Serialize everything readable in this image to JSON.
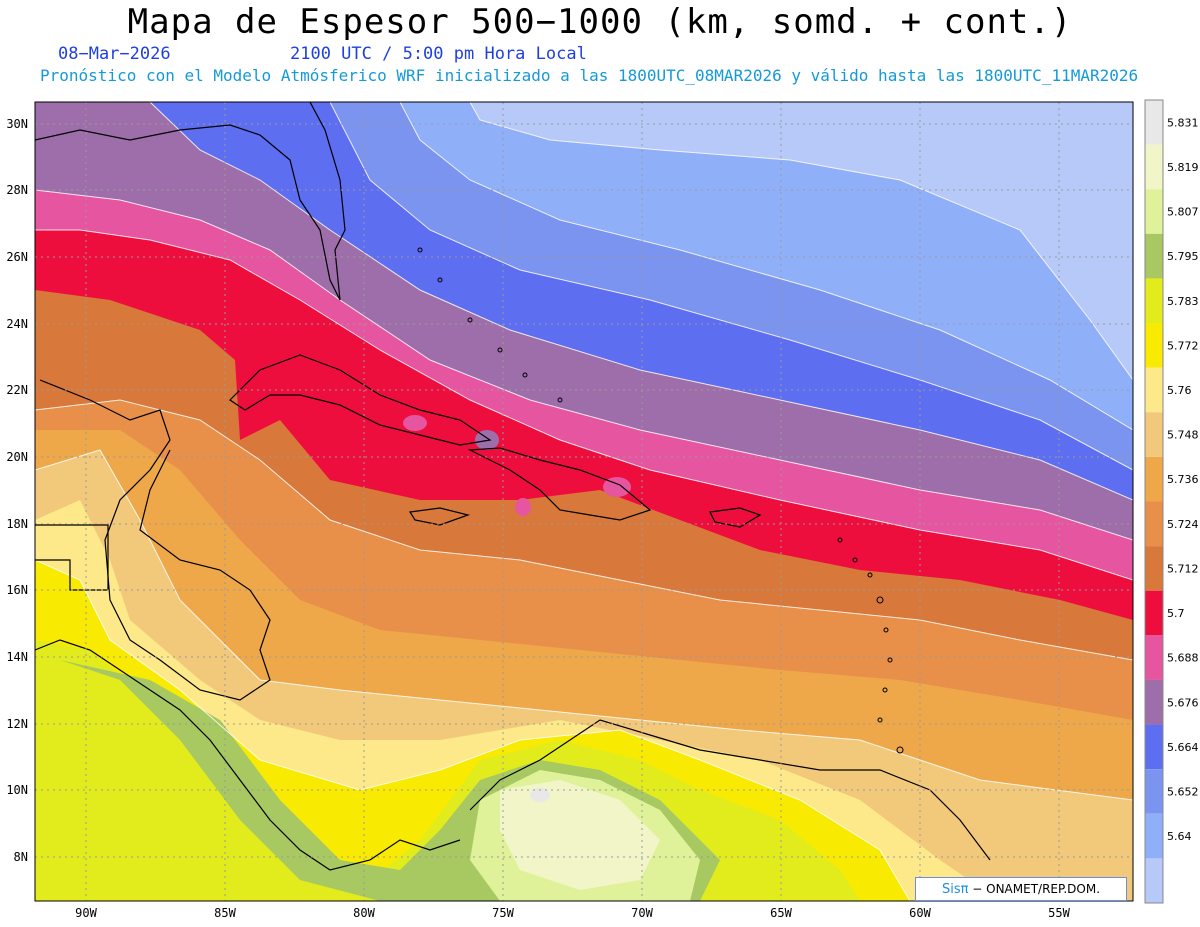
{
  "header": {
    "title": "Mapa de Espesor 500−1000 (km, somd. + cont.)",
    "date": "08−Mar−2026",
    "time": "2100 UTC / 5:00 pm Hora Local",
    "subtitle": "Pronóstico con el Modelo Atmósferico WRF inicializado a las 1800UTC_08MAR2026 y válido hasta las  1800UTC_11MAR2026"
  },
  "axes": {
    "lat_labels": [
      "30N",
      "28N",
      "26N",
      "24N",
      "22N",
      "20N",
      "18N",
      "16N",
      "14N",
      "12N",
      "10N",
      "8N"
    ],
    "lon_labels": [
      "90W",
      "85W",
      "80W",
      "75W",
      "70W",
      "65W",
      "60W",
      "55W"
    ]
  },
  "colorbar": {
    "levels": [
      "5.831",
      "5.819",
      "5.807",
      "5.795",
      "5.783",
      "5.772",
      "5.76",
      "5.748",
      "5.736",
      "5.724",
      "5.712",
      "5.7",
      "5.688",
      "5.676",
      "5.664",
      "5.652",
      "5.64"
    ],
    "colors": [
      "#e8e8e8",
      "#f2f5c8",
      "#dff29a",
      "#a8c862",
      "#e2ec1c",
      "#f8ea00",
      "#fde88a",
      "#f2c97a",
      "#eea84a",
      "#e8904a",
      "#d8783a",
      "#ee0e3e",
      "#e655a0",
      "#9e6eaa",
      "#5d6ef0",
      "#7b94f0",
      "#8fb0f8",
      "#b7c9f8"
    ]
  },
  "credit": {
    "brand": "Sisπ",
    "org": "− ONAMET/REP.DOM."
  },
  "chart_data": {
    "type": "heatmap",
    "title": "Mapa de Espesor 500−1000 (km, somd. + cont.)",
    "lat_ticks_deg_N": [
      30,
      28,
      26,
      24,
      22,
      20,
      18,
      16,
      14,
      12,
      10,
      8
    ],
    "lon_ticks_deg_W": [
      90,
      85,
      80,
      75,
      70,
      65,
      60,
      55
    ],
    "contour_levels_km": [
      5.64,
      5.652,
      5.664,
      5.676,
      5.688,
      5.7,
      5.712,
      5.724,
      5.736,
      5.748,
      5.76,
      5.772,
      5.783,
      5.795,
      5.807,
      5.819,
      5.831
    ],
    "grid": true
  }
}
